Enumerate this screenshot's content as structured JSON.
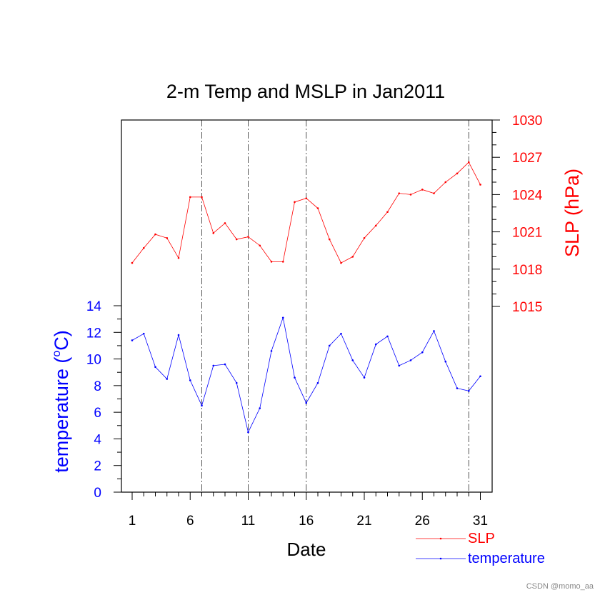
{
  "chart_data": {
    "type": "line",
    "title": "2-m Temp and MSLP in Jan2011",
    "xlabel": "Date",
    "x": [
      1,
      2,
      3,
      4,
      5,
      6,
      7,
      8,
      9,
      10,
      11,
      12,
      13,
      14,
      15,
      16,
      17,
      18,
      19,
      20,
      21,
      22,
      23,
      24,
      25,
      26,
      27,
      28,
      29,
      30,
      31
    ],
    "xticks": [
      1,
      6,
      11,
      16,
      21,
      26,
      31
    ],
    "xlim": [
      0,
      32
    ],
    "vlines": [
      7,
      11,
      16,
      30
    ],
    "left_axis": {
      "label": "temperature (°C)",
      "label_main": "temperature (",
      "label_sup": "o",
      "label_end": "C)",
      "ylim": [
        0,
        14
      ],
      "ticks": [
        0,
        2,
        4,
        6,
        8,
        10,
        12,
        14
      ],
      "color": "#0000ff"
    },
    "right_axis": {
      "label": "SLP (hPa)",
      "ylim": [
        1015,
        1030
      ],
      "ticks": [
        1015,
        1018,
        1021,
        1024,
        1027,
        1030
      ],
      "color": "#ff0000"
    },
    "series": [
      {
        "name": "SLP",
        "axis": "right",
        "color": "#ff0000",
        "values": [
          1018.5,
          1019.7,
          1020.8,
          1020.5,
          1018.9,
          1023.8,
          1023.8,
          1020.9,
          1021.7,
          1020.4,
          1020.6,
          1019.9,
          1018.6,
          1018.6,
          1023.4,
          1023.7,
          1022.9,
          1020.4,
          1018.5,
          1019.0,
          1020.5,
          1021.5,
          1022.6,
          1024.1,
          1024.0,
          1024.4,
          1024.1,
          1025.0,
          1025.7,
          1026.6,
          1024.8
        ]
      },
      {
        "name": "temperature",
        "axis": "left",
        "color": "#0000ff",
        "values": [
          11.4,
          11.9,
          9.4,
          8.5,
          11.8,
          8.4,
          6.5,
          9.5,
          9.6,
          8.2,
          4.5,
          6.3,
          10.6,
          13.1,
          8.6,
          6.7,
          8.2,
          11.0,
          11.9,
          9.9,
          8.6,
          11.1,
          11.7,
          9.5,
          9.9,
          10.5,
          12.1,
          9.8,
          7.8,
          7.6,
          8.7
        ]
      }
    ],
    "legend": {
      "placement": "bottom-right",
      "entries": [
        "SLP",
        "temperature"
      ]
    }
  },
  "watermark": "CSDN @momo_aa"
}
